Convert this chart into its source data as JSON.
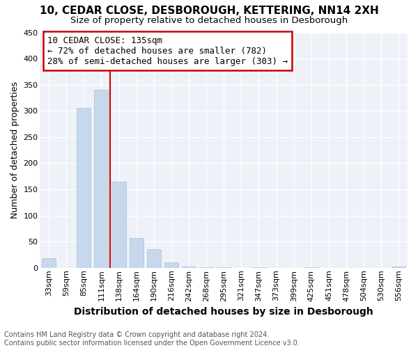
{
  "title": "10, CEDAR CLOSE, DESBOROUGH, KETTERING, NN14 2XH",
  "subtitle": "Size of property relative to detached houses in Desborough",
  "xlabel": "Distribution of detached houses by size in Desborough",
  "ylabel": "Number of detached properties",
  "footnote1": "Contains HM Land Registry data © Crown copyright and database right 2024.",
  "footnote2": "Contains public sector information licensed under the Open Government Licence v3.0.",
  "annotation_line1": "10 CEDAR CLOSE: 135sqm",
  "annotation_line2": "← 72% of detached houses are smaller (782)",
  "annotation_line3": "28% of semi-detached houses are larger (303) →",
  "bar_color": "#c8d8ec",
  "bar_edge_color": "#a8c0d8",
  "highlight_line_color": "#cc0000",
  "annotation_box_color": "#cc0000",
  "categories": [
    "33sqm",
    "59sqm",
    "85sqm",
    "111sqm",
    "138sqm",
    "164sqm",
    "190sqm",
    "216sqm",
    "242sqm",
    "268sqm",
    "295sqm",
    "321sqm",
    "347sqm",
    "373sqm",
    "399sqm",
    "425sqm",
    "451sqm",
    "478sqm",
    "504sqm",
    "530sqm",
    "556sqm"
  ],
  "values": [
    18,
    0,
    305,
    340,
    165,
    57,
    35,
    10,
    2,
    1,
    1,
    0,
    1,
    0,
    0,
    1,
    0,
    0,
    0,
    0,
    2
  ],
  "ylim": [
    0,
    450
  ],
  "yticks": [
    0,
    50,
    100,
    150,
    200,
    250,
    300,
    350,
    400,
    450
  ],
  "highlight_bar_index": 4,
  "background_color": "#eef2f8",
  "grid_color": "#ffffff",
  "title_fontsize": 11,
  "subtitle_fontsize": 9.5,
  "ylabel_fontsize": 9,
  "xlabel_fontsize": 10,
  "tick_fontsize": 8,
  "footnote_fontsize": 7,
  "annotation_fontsize": 9
}
